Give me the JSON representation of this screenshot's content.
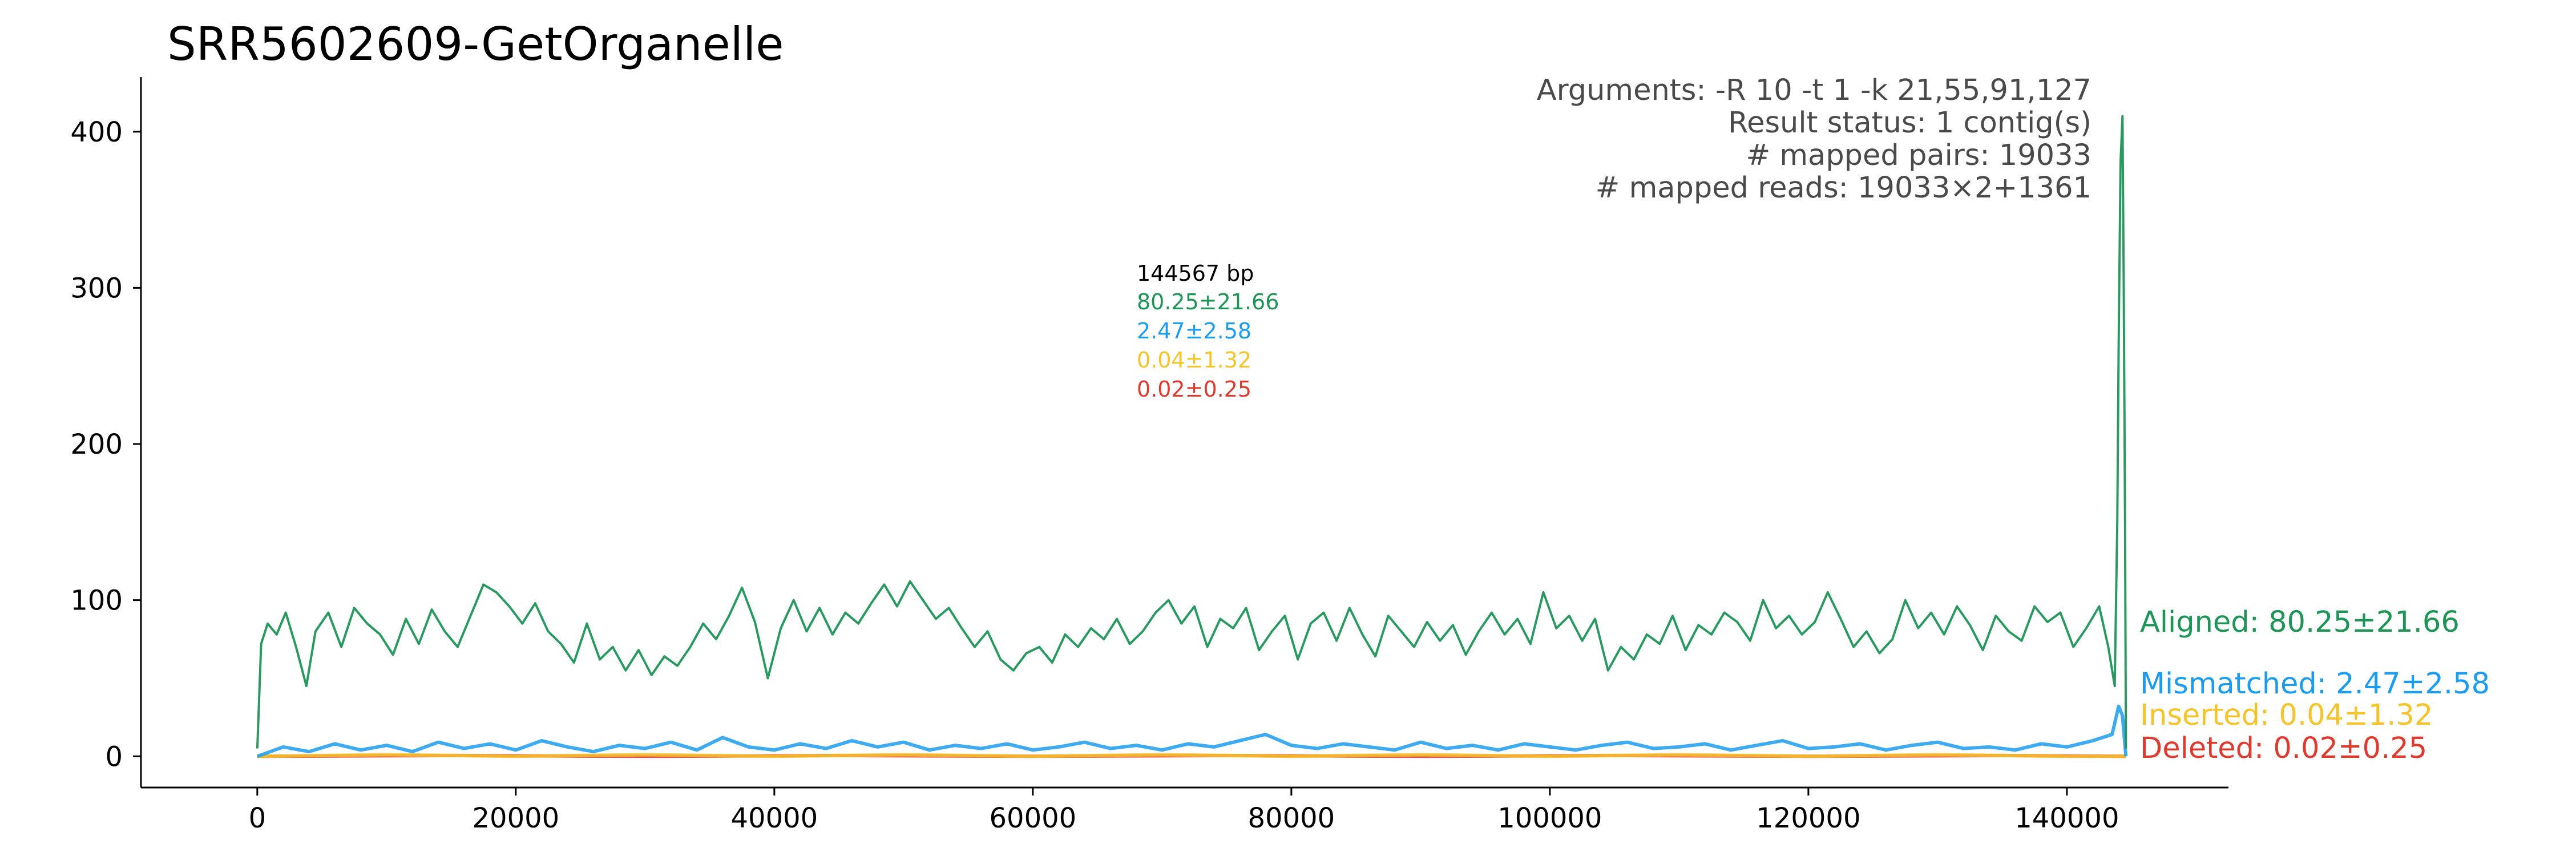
{
  "chart_data": {
    "type": "line",
    "title": "SRR5602609-GetOrganelle",
    "xlabel": "",
    "ylabel": "",
    "xlim": [
      -9000,
      152500
    ],
    "ylim": [
      -20,
      435
    ],
    "x_ticks": [
      0,
      20000,
      40000,
      60000,
      80000,
      100000,
      120000,
      140000
    ],
    "y_ticks": [
      0,
      100,
      200,
      300,
      400
    ],
    "grid": false,
    "info_lines": [
      "Arguments: -R 10 -t 1 -k 21,55,91,127",
      "Result status: 1 contig(s)",
      "# mapped pairs: 19033",
      "# mapped reads: 19033×2+1361"
    ],
    "length_label": "144567 bp",
    "series": [
      {
        "name": "Aligned: 80.25±21.66",
        "stat": "80.25±21.66",
        "color": "#1e9457",
        "points": [
          [
            0,
            5
          ],
          [
            300,
            72
          ],
          [
            800,
            85
          ],
          [
            1500,
            78
          ],
          [
            2200,
            92
          ],
          [
            3000,
            70
          ],
          [
            3800,
            45
          ],
          [
            4500,
            80
          ],
          [
            5500,
            92
          ],
          [
            6500,
            70
          ],
          [
            7500,
            95
          ],
          [
            8500,
            85
          ],
          [
            9500,
            78
          ],
          [
            10500,
            65
          ],
          [
            11500,
            88
          ],
          [
            12500,
            72
          ],
          [
            13500,
            94
          ],
          [
            14500,
            80
          ],
          [
            15500,
            70
          ],
          [
            16500,
            90
          ],
          [
            17500,
            110
          ],
          [
            18500,
            105
          ],
          [
            19500,
            96
          ],
          [
            20500,
            85
          ],
          [
            21500,
            98
          ],
          [
            22500,
            80
          ],
          [
            23500,
            72
          ],
          [
            24500,
            60
          ],
          [
            25500,
            85
          ],
          [
            26500,
            62
          ],
          [
            27500,
            70
          ],
          [
            28500,
            55
          ],
          [
            29500,
            68
          ],
          [
            30500,
            52
          ],
          [
            31500,
            64
          ],
          [
            32500,
            58
          ],
          [
            33500,
            70
          ],
          [
            34500,
            85
          ],
          [
            35500,
            75
          ],
          [
            36500,
            90
          ],
          [
            37500,
            108
          ],
          [
            38500,
            86
          ],
          [
            39500,
            50
          ],
          [
            40500,
            82
          ],
          [
            41500,
            100
          ],
          [
            42500,
            80
          ],
          [
            43500,
            95
          ],
          [
            44500,
            78
          ],
          [
            45500,
            92
          ],
          [
            46500,
            85
          ],
          [
            47500,
            98
          ],
          [
            48500,
            110
          ],
          [
            49500,
            96
          ],
          [
            50500,
            112
          ],
          [
            51500,
            100
          ],
          [
            52500,
            88
          ],
          [
            53500,
            95
          ],
          [
            54500,
            82
          ],
          [
            55500,
            70
          ],
          [
            56500,
            80
          ],
          [
            57500,
            62
          ],
          [
            58500,
            55
          ],
          [
            59500,
            66
          ],
          [
            60500,
            70
          ],
          [
            61500,
            60
          ],
          [
            62500,
            78
          ],
          [
            63500,
            70
          ],
          [
            64500,
            82
          ],
          [
            65500,
            75
          ],
          [
            66500,
            88
          ],
          [
            67500,
            72
          ],
          [
            68500,
            80
          ],
          [
            69500,
            92
          ],
          [
            70500,
            100
          ],
          [
            71500,
            85
          ],
          [
            72500,
            96
          ],
          [
            73500,
            70
          ],
          [
            74500,
            88
          ],
          [
            75500,
            82
          ],
          [
            76500,
            95
          ],
          [
            77500,
            68
          ],
          [
            78500,
            80
          ],
          [
            79500,
            90
          ],
          [
            80500,
            62
          ],
          [
            81500,
            85
          ],
          [
            82500,
            92
          ],
          [
            83500,
            74
          ],
          [
            84500,
            95
          ],
          [
            85500,
            78
          ],
          [
            86500,
            64
          ],
          [
            87500,
            90
          ],
          [
            88500,
            80
          ],
          [
            89500,
            70
          ],
          [
            90500,
            86
          ],
          [
            91500,
            74
          ],
          [
            92500,
            84
          ],
          [
            93500,
            65
          ],
          [
            94500,
            80
          ],
          [
            95500,
            92
          ],
          [
            96500,
            78
          ],
          [
            97500,
            88
          ],
          [
            98500,
            72
          ],
          [
            99500,
            105
          ],
          [
            100500,
            82
          ],
          [
            101500,
            90
          ],
          [
            102500,
            74
          ],
          [
            103500,
            88
          ],
          [
            104500,
            55
          ],
          [
            105500,
            70
          ],
          [
            106500,
            62
          ],
          [
            107500,
            78
          ],
          [
            108500,
            72
          ],
          [
            109500,
            90
          ],
          [
            110500,
            68
          ],
          [
            111500,
            84
          ],
          [
            112500,
            78
          ],
          [
            113500,
            92
          ],
          [
            114500,
            86
          ],
          [
            115500,
            74
          ],
          [
            116500,
            100
          ],
          [
            117500,
            82
          ],
          [
            118500,
            90
          ],
          [
            119500,
            78
          ],
          [
            120500,
            86
          ],
          [
            121500,
            105
          ],
          [
            122500,
            88
          ],
          [
            123500,
            70
          ],
          [
            124500,
            80
          ],
          [
            125500,
            66
          ],
          [
            126500,
            75
          ],
          [
            127500,
            100
          ],
          [
            128500,
            82
          ],
          [
            129500,
            92
          ],
          [
            130500,
            78
          ],
          [
            131500,
            96
          ],
          [
            132500,
            84
          ],
          [
            133500,
            68
          ],
          [
            134500,
            90
          ],
          [
            135500,
            80
          ],
          [
            136500,
            74
          ],
          [
            137500,
            96
          ],
          [
            138500,
            86
          ],
          [
            139500,
            92
          ],
          [
            140500,
            70
          ],
          [
            141500,
            82
          ],
          [
            142500,
            96
          ],
          [
            143200,
            70
          ],
          [
            143700,
            45
          ],
          [
            143900,
            150
          ],
          [
            144000,
            260
          ],
          [
            144150,
            380
          ],
          [
            144300,
            410
          ],
          [
            144400,
            300
          ],
          [
            144500,
            150
          ],
          [
            144567,
            5
          ]
        ]
      },
      {
        "name": "Mismatched: 2.47±2.58",
        "stat": "2.47±2.58",
        "color": "#1c9cee",
        "points": [
          [
            0,
            0
          ],
          [
            2000,
            6
          ],
          [
            4000,
            3
          ],
          [
            6000,
            8
          ],
          [
            8000,
            4
          ],
          [
            10000,
            7
          ],
          [
            12000,
            3
          ],
          [
            14000,
            9
          ],
          [
            16000,
            5
          ],
          [
            18000,
            8
          ],
          [
            20000,
            4
          ],
          [
            22000,
            10
          ],
          [
            24000,
            6
          ],
          [
            26000,
            3
          ],
          [
            28000,
            7
          ],
          [
            30000,
            5
          ],
          [
            32000,
            9
          ],
          [
            34000,
            4
          ],
          [
            36000,
            12
          ],
          [
            38000,
            6
          ],
          [
            40000,
            4
          ],
          [
            42000,
            8
          ],
          [
            44000,
            5
          ],
          [
            46000,
            10
          ],
          [
            48000,
            6
          ],
          [
            50000,
            9
          ],
          [
            52000,
            4
          ],
          [
            54000,
            7
          ],
          [
            56000,
            5
          ],
          [
            58000,
            8
          ],
          [
            60000,
            4
          ],
          [
            62000,
            6
          ],
          [
            64000,
            9
          ],
          [
            66000,
            5
          ],
          [
            68000,
            7
          ],
          [
            70000,
            4
          ],
          [
            72000,
            8
          ],
          [
            74000,
            6
          ],
          [
            76000,
            10
          ],
          [
            78000,
            14
          ],
          [
            80000,
            7
          ],
          [
            82000,
            5
          ],
          [
            84000,
            8
          ],
          [
            86000,
            6
          ],
          [
            88000,
            4
          ],
          [
            90000,
            9
          ],
          [
            92000,
            5
          ],
          [
            94000,
            7
          ],
          [
            96000,
            4
          ],
          [
            98000,
            8
          ],
          [
            100000,
            6
          ],
          [
            102000,
            4
          ],
          [
            104000,
            7
          ],
          [
            106000,
            9
          ],
          [
            108000,
            5
          ],
          [
            110000,
            6
          ],
          [
            112000,
            8
          ],
          [
            114000,
            4
          ],
          [
            116000,
            7
          ],
          [
            118000,
            10
          ],
          [
            120000,
            5
          ],
          [
            122000,
            6
          ],
          [
            124000,
            8
          ],
          [
            126000,
            4
          ],
          [
            128000,
            7
          ],
          [
            130000,
            9
          ],
          [
            132000,
            5
          ],
          [
            134000,
            6
          ],
          [
            136000,
            4
          ],
          [
            138000,
            8
          ],
          [
            140000,
            6
          ],
          [
            142000,
            10
          ],
          [
            143500,
            14
          ],
          [
            144000,
            32
          ],
          [
            144300,
            26
          ],
          [
            144567,
            0
          ]
        ]
      },
      {
        "name": "Inserted: 0.04±1.32",
        "stat": "0.04±1.32",
        "color": "#f6c32a",
        "points": [
          [
            0,
            0
          ],
          [
            10000,
            1
          ],
          [
            20000,
            0
          ],
          [
            30000,
            1
          ],
          [
            40000,
            0
          ],
          [
            50000,
            1
          ],
          [
            60000,
            0
          ],
          [
            70000,
            1
          ],
          [
            80000,
            0
          ],
          [
            90000,
            1
          ],
          [
            100000,
            0
          ],
          [
            110000,
            1
          ],
          [
            120000,
            0
          ],
          [
            130000,
            1
          ],
          [
            140000,
            0
          ],
          [
            144567,
            0
          ]
        ]
      },
      {
        "name": "Deleted: 0.02±0.25",
        "stat": "0.02±0.25",
        "color": "#de3b2e",
        "points": [
          [
            0,
            0
          ],
          [
            15000,
            0.5
          ],
          [
            30000,
            0
          ],
          [
            45000,
            0.5
          ],
          [
            60000,
            0
          ],
          [
            75000,
            0.5
          ],
          [
            90000,
            0
          ],
          [
            105000,
            0.5
          ],
          [
            120000,
            0
          ],
          [
            135000,
            0.5
          ],
          [
            144567,
            0
          ]
        ]
      }
    ]
  }
}
